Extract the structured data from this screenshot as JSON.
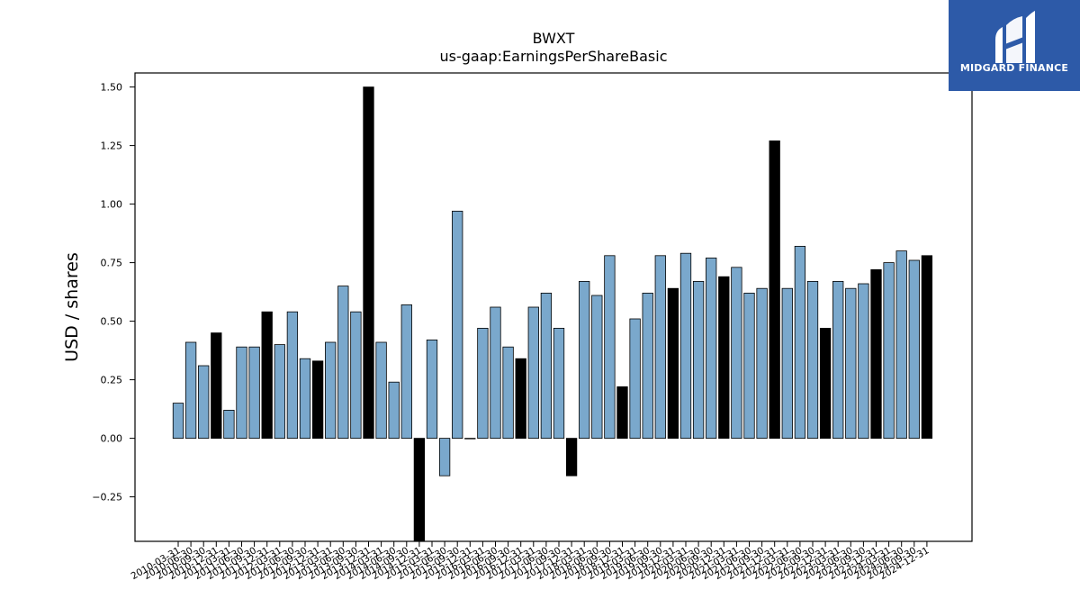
{
  "brand": {
    "name": "MIDGARD FINANCE",
    "background": "#2d5aa8"
  },
  "chart_data": {
    "type": "bar",
    "title": "BWXT",
    "subtitle": "us-gaap:EarningsPerShareBasic",
    "xlabel": "",
    "ylabel": "USD / shares",
    "ylim": [
      -0.44,
      1.56
    ],
    "yticks": [
      -0.25,
      0.0,
      0.25,
      0.5,
      0.75,
      1.0,
      1.25,
      1.5
    ],
    "ytick_labels": [
      "−0.25",
      "0.00",
      "0.25",
      "0.50",
      "0.75",
      "1.00",
      "1.25",
      "1.50"
    ],
    "grid": false,
    "colors": {
      "quarter": "#7aa8cc",
      "annual": "#000000",
      "edge": "#000000"
    },
    "categories": [
      "2010-03-31",
      "2010-06-30",
      "2010-09-30",
      "2010-12-31",
      "2011-03-31",
      "2011-06-30",
      "2011-09-30",
      "2011-12-31",
      "2012-03-31",
      "2012-06-30",
      "2012-09-30",
      "2012-12-31",
      "2013-03-31",
      "2013-06-30",
      "2013-09-30",
      "2013-12-31",
      "2014-03-31",
      "2014-06-30",
      "2014-09-30",
      "2014-12-31",
      "2015-03-31",
      "2015-06-30",
      "2015-09-30",
      "2015-12-31",
      "2016-03-31",
      "2016-06-30",
      "2016-09-30",
      "2016-12-31",
      "2017-03-31",
      "2017-06-30",
      "2017-09-30",
      "2017-12-31",
      "2018-03-31",
      "2018-06-30",
      "2018-09-30",
      "2018-12-31",
      "2019-03-31",
      "2019-06-30",
      "2019-09-30",
      "2019-12-31",
      "2020-03-31",
      "2020-06-30",
      "2020-09-30",
      "2020-12-31",
      "2021-03-31",
      "2021-06-30",
      "2021-09-30",
      "2021-12-31",
      "2022-03-31",
      "2022-06-30",
      "2022-09-30",
      "2022-12-31",
      "2023-03-31",
      "2023-06-30",
      "2023-09-30",
      "2023-12-31",
      "2024-03-31",
      "2024-06-30",
      "2024-09-30",
      "2024-12-31"
    ],
    "values": [
      0.15,
      0.41,
      0.31,
      0.45,
      0.12,
      0.39,
      0.39,
      0.54,
      0.4,
      0.54,
      0.34,
      0.33,
      0.41,
      0.65,
      0.54,
      1.5,
      0.41,
      0.24,
      0.57,
      -0.44,
      0.42,
      -0.16,
      0.97,
      0.0,
      0.47,
      0.56,
      0.39,
      0.34,
      0.56,
      0.62,
      0.47,
      -0.16,
      0.67,
      0.61,
      0.78,
      0.22,
      0.51,
      0.62,
      0.78,
      0.64,
      0.79,
      0.67,
      0.77,
      0.69,
      0.73,
      0.62,
      0.64,
      1.27,
      0.64,
      0.82,
      0.67,
      0.47,
      0.67,
      0.64,
      0.66,
      0.72,
      0.75,
      0.8,
      0.76,
      0.78
    ],
    "annual": [
      false,
      false,
      false,
      true,
      false,
      false,
      false,
      true,
      false,
      false,
      false,
      true,
      false,
      false,
      false,
      true,
      false,
      false,
      false,
      true,
      false,
      false,
      false,
      true,
      false,
      false,
      false,
      true,
      false,
      false,
      false,
      true,
      false,
      false,
      false,
      true,
      false,
      false,
      false,
      true,
      false,
      false,
      false,
      true,
      false,
      false,
      false,
      true,
      false,
      false,
      false,
      true,
      false,
      false,
      false,
      true,
      false,
      false,
      false,
      true
    ]
  }
}
